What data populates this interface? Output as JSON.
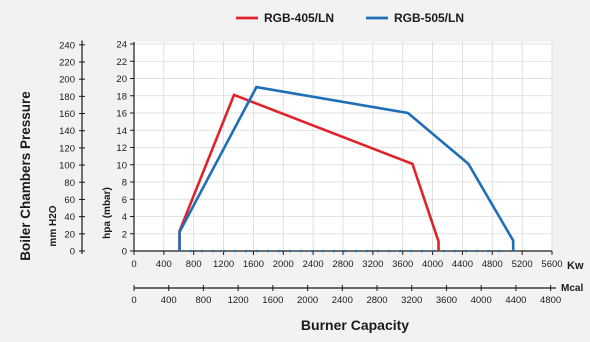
{
  "chart_data": {
    "type": "line",
    "xlabel": "Burner Capacity",
    "ylabel": "Boiler Chambers Pressure",
    "x_primary": {
      "unit": "Kw",
      "ticks": [
        0,
        400,
        800,
        1200,
        1600,
        2000,
        2400,
        2800,
        3200,
        3600,
        4000,
        4400,
        4800,
        5200,
        5600
      ],
      "range": [
        0,
        5600
      ]
    },
    "x_secondary": {
      "unit": "Mcal",
      "ticks": [
        0,
        400,
        800,
        1200,
        1600,
        2000,
        2400,
        2800,
        3200,
        3600,
        4000,
        4400,
        4800
      ],
      "range": [
        0,
        4816
      ]
    },
    "y_left": {
      "unit": "mm H2O",
      "ticks": [
        0,
        20,
        40,
        60,
        80,
        100,
        120,
        140,
        160,
        180,
        200,
        220,
        240
      ],
      "range": [
        0,
        245
      ]
    },
    "y_right": {
      "unit": "hpa (mbar)",
      "ticks": [
        0,
        2,
        4,
        6,
        8,
        10,
        12,
        14,
        16,
        18,
        20,
        22,
        24
      ],
      "range": [
        0,
        24
      ]
    },
    "grid": true,
    "legend_position": "top",
    "series": [
      {
        "name": "RGB-405/LN",
        "color": "#e0232b",
        "x": [
          610,
          610,
          1340,
          3730,
          4080,
          4080
        ],
        "y": [
          0,
          2.3,
          18.1,
          10.1,
          1.1,
          0
        ]
      },
      {
        "name": "RGB-505/LN",
        "color": "#1f6fb8",
        "x": [
          610,
          610,
          1640,
          3670,
          4480,
          5080,
          5080
        ],
        "y": [
          0,
          2.2,
          19.0,
          16.0,
          10.1,
          1.2,
          0
        ]
      }
    ]
  }
}
